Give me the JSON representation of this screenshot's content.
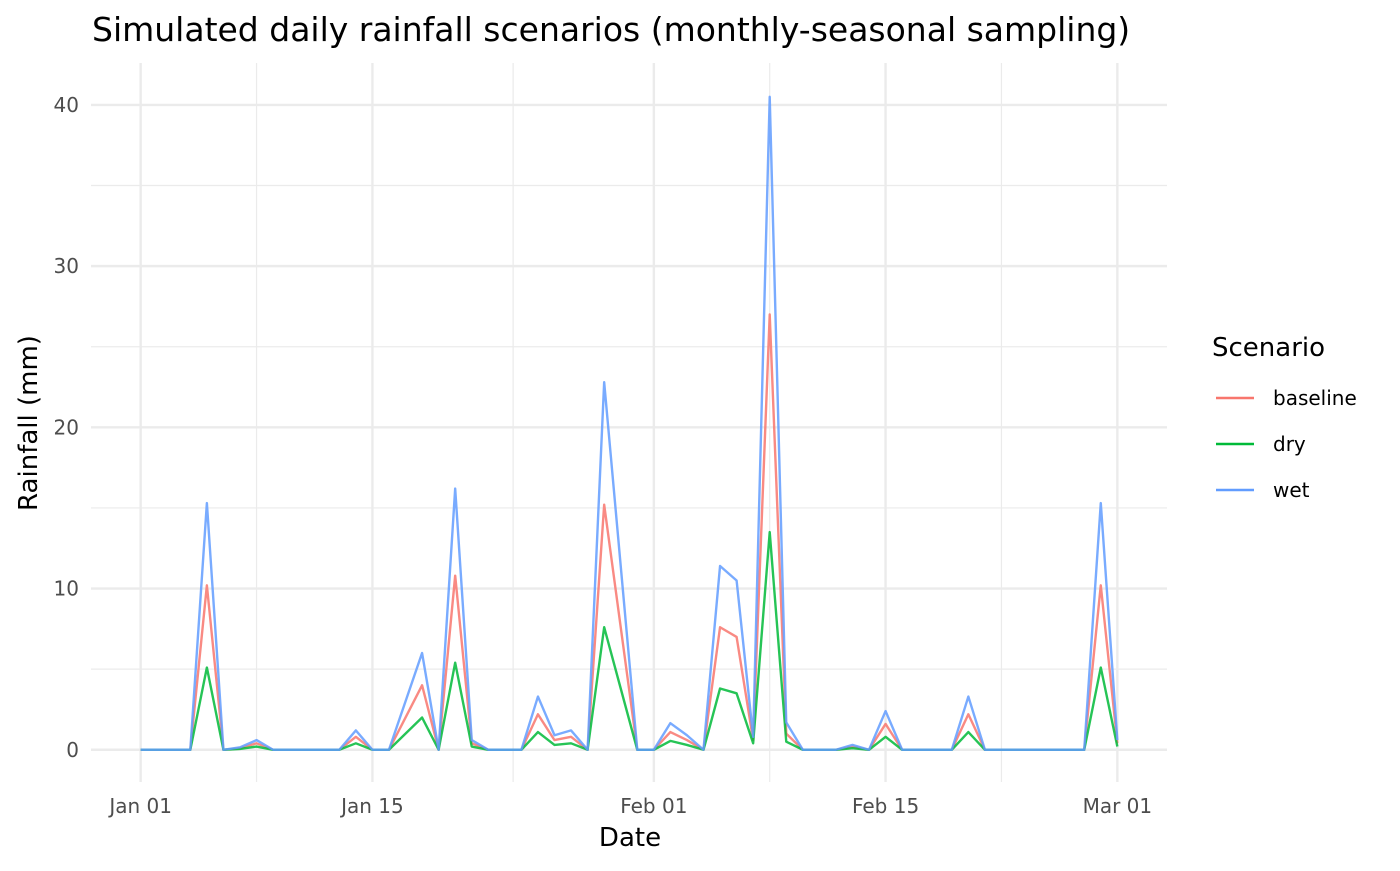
{
  "chart_data": {
    "type": "line",
    "title": "Simulated daily rainfall scenarios (monthly-seasonal sampling)",
    "xlabel": "Date",
    "ylabel": "Rainfall (mm)",
    "x_start": "2023-01-01",
    "x_end": "2023-03-01",
    "xlim": [
      "2022-12-29",
      "2023-03-04"
    ],
    "ylim": [
      -2,
      42.6
    ],
    "x_ticks": [
      {
        "date": "2023-01-01",
        "label": "Jan 01"
      },
      {
        "date": "2023-01-15",
        "label": "Jan 15"
      },
      {
        "date": "2023-02-01",
        "label": "Feb 01"
      },
      {
        "date": "2023-02-15",
        "label": "Feb 15"
      },
      {
        "date": "2023-03-01",
        "label": "Mar 01"
      }
    ],
    "y_ticks": [
      0,
      10,
      20,
      30,
      40
    ],
    "grid": true,
    "legend": {
      "title": "Scenario",
      "position": "right"
    },
    "series": [
      {
        "name": "baseline",
        "color": "#f8766d",
        "values": [
          0,
          0,
          0,
          0,
          10.2,
          0,
          0.1,
          0.4,
          0,
          0,
          0,
          0,
          0,
          0.8,
          0,
          0,
          2,
          4,
          0,
          10.8,
          0.4,
          0,
          0,
          0,
          2.2,
          0.6,
          0.8,
          0,
          15.2,
          7.6,
          0,
          0,
          1.1,
          0.6,
          0,
          7.6,
          7,
          0.6,
          27,
          1,
          0,
          0,
          0,
          0.2,
          0,
          1.6,
          0,
          0,
          0,
          0,
          2.2,
          0,
          0,
          0,
          0,
          0,
          0,
          0,
          10.2,
          0.4
        ]
      },
      {
        "name": "dry",
        "color": "#00ba38",
        "values": [
          0,
          0,
          0,
          0,
          5.1,
          0,
          0.05,
          0.2,
          0,
          0,
          0,
          0,
          0,
          0.4,
          0,
          0,
          1,
          2,
          0,
          5.4,
          0.2,
          0,
          0,
          0,
          1.1,
          0.3,
          0.4,
          0,
          7.6,
          3.8,
          0,
          0,
          0.55,
          0.3,
          0,
          3.8,
          3.5,
          0.4,
          13.5,
          0.5,
          0,
          0,
          0,
          0.1,
          0,
          0.8,
          0,
          0,
          0,
          0,
          1.1,
          0,
          0,
          0,
          0,
          0,
          0,
          0,
          5.1,
          0.2
        ]
      },
      {
        "name": "wet",
        "color": "#619cff",
        "values": [
          0,
          0,
          0,
          0,
          15.3,
          0,
          0.15,
          0.6,
          0,
          0,
          0,
          0,
          0,
          1.2,
          0,
          0,
          3,
          6,
          0,
          16.2,
          0.6,
          0,
          0,
          0,
          3.3,
          0.9,
          1.2,
          0,
          22.8,
          11.4,
          0,
          0,
          1.65,
          0.9,
          0,
          11.4,
          10.5,
          0.8,
          40.5,
          1.7,
          0,
          0,
          0,
          0.3,
          0,
          2.4,
          0,
          0,
          0,
          0,
          3.3,
          0,
          0,
          0,
          0,
          0,
          0,
          0,
          15.3,
          0.6
        ]
      }
    ]
  }
}
